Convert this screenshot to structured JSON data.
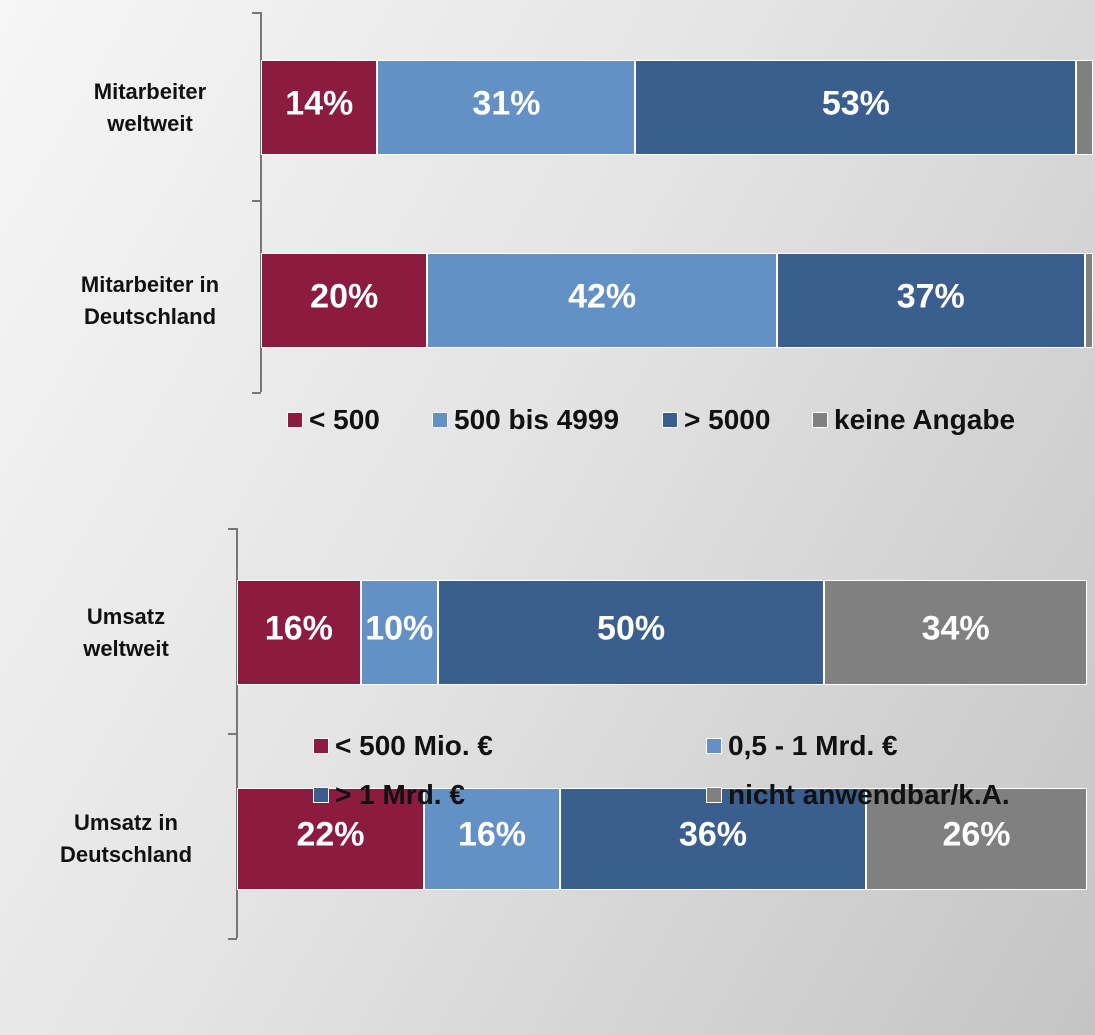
{
  "chart_data": [
    {
      "type": "stacked-bar-horizontal",
      "categories": [
        "Mitarbeiter\nweltweit",
        "Mitarbeiter in\nDeutschland"
      ],
      "series": [
        {
          "name": "< 500",
          "color": "#8b1c3f",
          "values": [
            14,
            20
          ],
          "value_labels": [
            "14%",
            "20%"
          ]
        },
        {
          "name": "500 bis 4999",
          "color": "#6391c6",
          "values": [
            31,
            42
          ],
          "value_labels": [
            "31%",
            "42%"
          ]
        },
        {
          "name": "> 5000",
          "color": "#3a5f8e",
          "values": [
            53,
            37
          ],
          "value_labels": [
            "53%",
            "37%"
          ]
        },
        {
          "name": "keine Angabe",
          "color": "#808080",
          "values": [
            2,
            1
          ],
          "value_labels": [
            null,
            null
          ]
        }
      ]
    },
    {
      "type": "stacked-bar-horizontal",
      "categories": [
        "Umsatz\nweltweit",
        "Umsatz in\nDeutschland"
      ],
      "series": [
        {
          "name": "<  500 Mio. €",
          "color": "#8b1c3f",
          "values": [
            16,
            22
          ],
          "value_labels": [
            "16%",
            "22%"
          ]
        },
        {
          "name": "0,5 - 1 Mrd. €",
          "color": "#6391c6",
          "values": [
            10,
            16
          ],
          "value_labels": [
            "10%",
            "16%"
          ]
        },
        {
          "name": "> 1 Mrd. €",
          "color": "#3a5f8e",
          "values": [
            50,
            36
          ],
          "value_labels": [
            "50%",
            "36%"
          ]
        },
        {
          "name": "nicht anwendbar/k.A.",
          "color": "#808080",
          "values": [
            34,
            26
          ],
          "value_labels": [
            "34%",
            "26%"
          ]
        }
      ]
    }
  ]
}
